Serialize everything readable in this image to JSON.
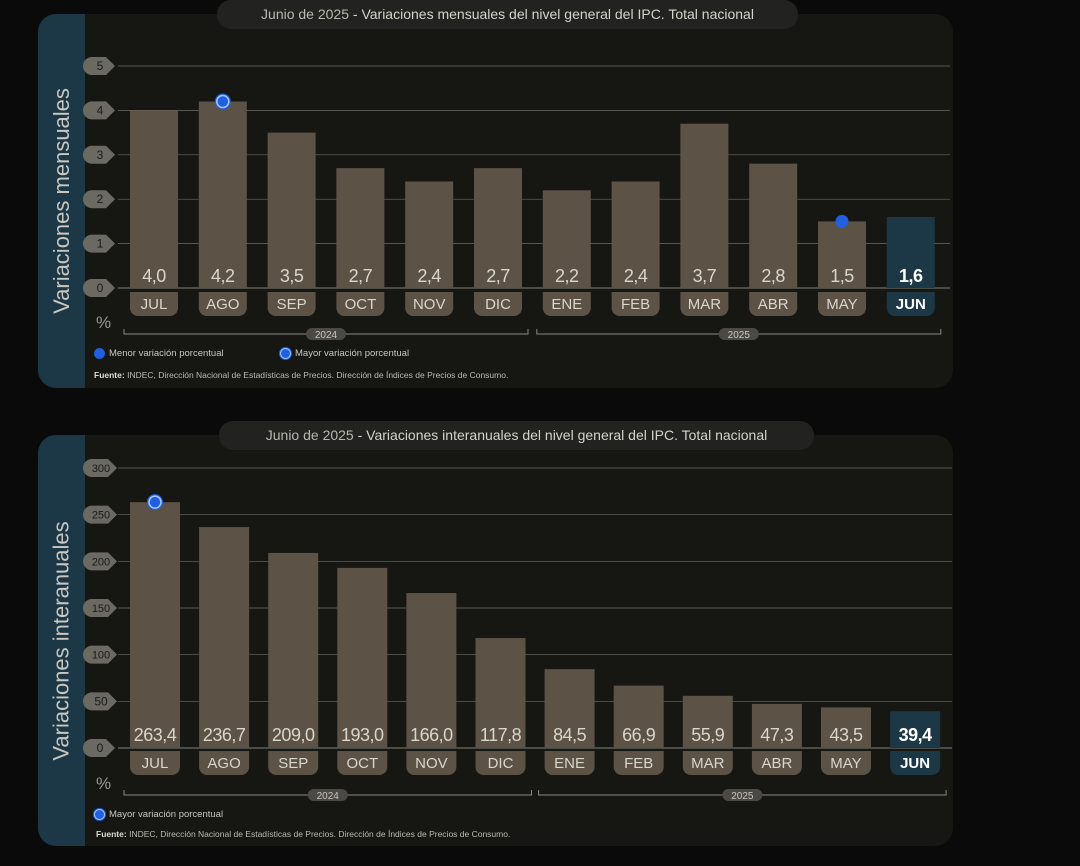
{
  "panels": [
    {
      "id": "mensual",
      "side_label": "Variaciones mensuales",
      "title_prefix": "Junio de 2025",
      "title_sep": " - ",
      "title_main": "Variaciones mensuales del nivel general del IPC. Total nacional",
      "unit": "%",
      "legend": {
        "min": "Menor variación porcentual",
        "max": "Mayor variación porcentual"
      },
      "source_label": "Fuente:",
      "source_text": "INDEC, Dirección Nacional de Estadísticas de Precios. Dirección de Índices de Precios de Consumo."
    },
    {
      "id": "interanual",
      "side_label": "Variaciones interanuales",
      "title_prefix": "Junio de 2025",
      "title_sep": " - ",
      "title_main": "Variaciones interanuales del nivel general del IPC. Total nacional",
      "unit": "%",
      "legend": {
        "max": "Mayor variación porcentual"
      },
      "source_label": "Fuente:",
      "source_text": "INDEC, Dirección Nacional de Estadísticas de Precios. Dirección de Índices de Precios de Consumo."
    }
  ],
  "colors": {
    "bar": "#5c5246",
    "bar_highlight": "#1c3746",
    "panel": "#161613",
    "marker": "#1f5fe0",
    "grid": "#6d6c66",
    "side": "#1c3746"
  },
  "chart_data": [
    {
      "type": "bar",
      "categories": [
        "JUL",
        "AGO",
        "SEP",
        "OCT",
        "NOV",
        "DIC",
        "ENE",
        "FEB",
        "MAR",
        "ABR",
        "MAY",
        "JUN"
      ],
      "values": [
        4.0,
        4.2,
        3.5,
        2.7,
        2.4,
        2.7,
        2.2,
        2.4,
        3.7,
        2.8,
        1.5,
        1.6
      ],
      "labels": [
        "4,0",
        "4,2",
        "3,5",
        "2,7",
        "2,4",
        "2,7",
        "2,2",
        "2,4",
        "3,7",
        "2,8",
        "1,5",
        "1,6"
      ],
      "yticks": [
        "0",
        "1",
        "2",
        "3",
        "4",
        "5"
      ],
      "ylim": [
        0,
        5
      ],
      "ylabel": "%",
      "highlight_index": 11,
      "min_index": 10,
      "max_index": 1,
      "years": [
        {
          "label": "2024",
          "from": 0,
          "to": 5
        },
        {
          "label": "2025",
          "from": 6,
          "to": 11
        }
      ],
      "grid": true
    },
    {
      "type": "bar",
      "categories": [
        "JUL",
        "AGO",
        "SEP",
        "OCT",
        "NOV",
        "DIC",
        "ENE",
        "FEB",
        "MAR",
        "ABR",
        "MAY",
        "JUN"
      ],
      "values": [
        263.4,
        236.7,
        209.0,
        193.0,
        166.0,
        117.8,
        84.5,
        66.9,
        55.9,
        47.3,
        43.5,
        39.4
      ],
      "labels": [
        "263,4",
        "236,7",
        "209,0",
        "193,0",
        "166,0",
        "117,8",
        "84,5",
        "66,9",
        "55,9",
        "47,3",
        "43,5",
        "39,4"
      ],
      "yticks": [
        "0",
        "50",
        "100",
        "150",
        "200",
        "250",
        "300"
      ],
      "ylim": [
        0,
        300
      ],
      "ylabel": "%",
      "highlight_index": 11,
      "max_index": 0,
      "years": [
        {
          "label": "2024",
          "from": 0,
          "to": 5
        },
        {
          "label": "2025",
          "from": 6,
          "to": 11
        }
      ],
      "grid": true
    }
  ]
}
